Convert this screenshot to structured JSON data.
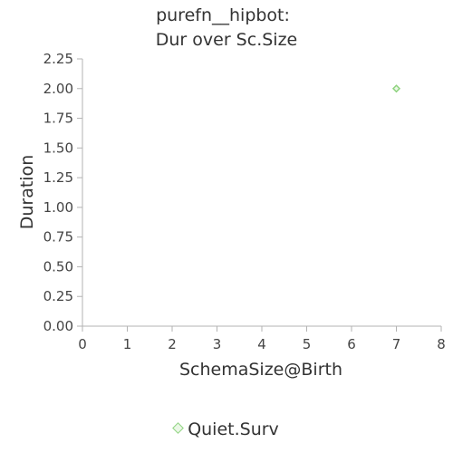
{
  "chart_data": {
    "type": "scatter",
    "title_line1": "purefn__hipbot:",
    "title_line2": "Dur over Sc.Size",
    "xlabel": "SchemaSize@Birth",
    "ylabel": "Duration",
    "xlim": [
      0,
      8
    ],
    "ylim": [
      0,
      2.25
    ],
    "x_ticks": [
      "0",
      "1",
      "2",
      "3",
      "4",
      "5",
      "6",
      "7",
      "8"
    ],
    "y_ticks": [
      "0.00",
      "0.25",
      "0.50",
      "0.75",
      "1.00",
      "1.25",
      "1.50",
      "1.75",
      "2.00",
      "2.25"
    ],
    "series": [
      {
        "name": "Quiet.Surv",
        "color": "#8fd37f",
        "marker": "diamond",
        "points": [
          {
            "x": 7,
            "y": 2.0
          }
        ]
      }
    ],
    "grid": false,
    "legend_position": "bottom"
  }
}
